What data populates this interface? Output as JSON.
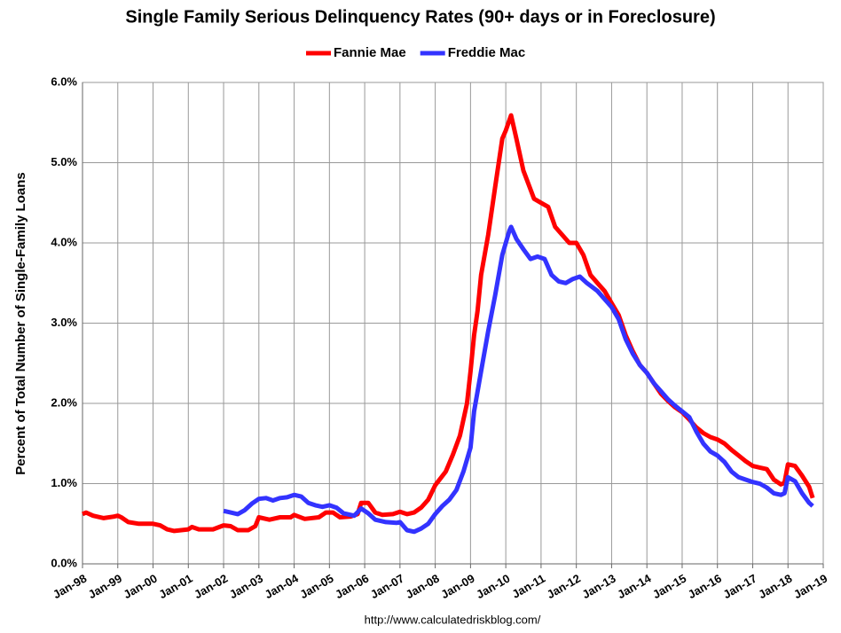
{
  "chart_data": {
    "type": "line",
    "title": "Single Family Serious Delinquency Rates (90+ days or in Foreclosure)",
    "y_label": "Percent of Total Number of Single-Family Loans",
    "source": "http://www.calculatedriskblog.com/",
    "grid": true,
    "legend": "top",
    "xlim": [
      1998,
      2019
    ],
    "ylim": [
      0,
      6
    ],
    "xticks": [
      {
        "value": 1998,
        "label": "Jan-98"
      },
      {
        "value": 1999,
        "label": "Jan-99"
      },
      {
        "value": 2000,
        "label": "Jan-00"
      },
      {
        "value": 2001,
        "label": "Jan-01"
      },
      {
        "value": 2002,
        "label": "Jan-02"
      },
      {
        "value": 2003,
        "label": "Jan-03"
      },
      {
        "value": 2004,
        "label": "Jan-04"
      },
      {
        "value": 2005,
        "label": "Jan-05"
      },
      {
        "value": 2006,
        "label": "Jan-06"
      },
      {
        "value": 2007,
        "label": "Jan-07"
      },
      {
        "value": 2008,
        "label": "Jan-08"
      },
      {
        "value": 2009,
        "label": "Jan-09"
      },
      {
        "value": 2010,
        "label": "Jan-10"
      },
      {
        "value": 2011,
        "label": "Jan-11"
      },
      {
        "value": 2012,
        "label": "Jan-12"
      },
      {
        "value": 2013,
        "label": "Jan-13"
      },
      {
        "value": 2014,
        "label": "Jan-14"
      },
      {
        "value": 2015,
        "label": "Jan-15"
      },
      {
        "value": 2016,
        "label": "Jan-16"
      },
      {
        "value": 2017,
        "label": "Jan-17"
      },
      {
        "value": 2018,
        "label": "Jan-18"
      },
      {
        "value": 2019,
        "label": "Jan-19"
      }
    ],
    "yticks": [
      {
        "value": 0,
        "label": "0.0%"
      },
      {
        "value": 1,
        "label": "1.0%"
      },
      {
        "value": 2,
        "label": "2.0%"
      },
      {
        "value": 3,
        "label": "3.0%"
      },
      {
        "value": 4,
        "label": "4.0%"
      },
      {
        "value": 5,
        "label": "5.0%"
      },
      {
        "value": 6,
        "label": "6.0%"
      }
    ],
    "series": [
      {
        "name": "Fannie Mae",
        "color": "#ff0000",
        "x": [
          1998.0,
          1998.1,
          1998.3,
          1998.6,
          1998.9,
          1999.0,
          1999.1,
          1999.3,
          1999.6,
          2000.0,
          2000.2,
          2000.4,
          2000.6,
          2001.0,
          2001.1,
          2001.3,
          2001.7,
          2002.0,
          2002.2,
          2002.4,
          2002.7,
          2002.9,
          2003.0,
          2003.3,
          2003.6,
          2003.9,
          2004.0,
          2004.3,
          2004.7,
          2004.9,
          2005.1,
          2005.3,
          2005.6,
          2005.8,
          2005.9,
          2006.1,
          2006.3,
          2006.5,
          2006.8,
          2007.0,
          2007.2,
          2007.4,
          2007.6,
          2007.8,
          2008.0,
          2008.3,
          2008.5,
          2008.7,
          2008.9,
          2009.0,
          2009.1,
          2009.2,
          2009.3,
          2009.5,
          2009.7,
          2009.9,
          2010.0,
          2010.15,
          2010.3,
          2010.5,
          2010.8,
          2011.0,
          2011.2,
          2011.4,
          2011.6,
          2011.8,
          2012.0,
          2012.2,
          2012.4,
          2012.6,
          2012.8,
          2013.0,
          2013.2,
          2013.4,
          2013.6,
          2013.8,
          2014.0,
          2014.2,
          2014.4,
          2014.6,
          2014.8,
          2015.0,
          2015.2,
          2015.4,
          2015.6,
          2015.8,
          2016.0,
          2016.2,
          2016.4,
          2016.6,
          2016.8,
          2017.0,
          2017.2,
          2017.4,
          2017.6,
          2017.8,
          2017.9,
          2018.0,
          2018.2,
          2018.4,
          2018.6,
          2018.7
        ],
        "values": [
          0.62,
          0.64,
          0.6,
          0.57,
          0.59,
          0.6,
          0.58,
          0.52,
          0.5,
          0.5,
          0.48,
          0.43,
          0.41,
          0.43,
          0.46,
          0.43,
          0.43,
          0.48,
          0.47,
          0.42,
          0.42,
          0.47,
          0.58,
          0.55,
          0.58,
          0.58,
          0.61,
          0.56,
          0.58,
          0.64,
          0.64,
          0.58,
          0.59,
          0.62,
          0.76,
          0.76,
          0.64,
          0.61,
          0.62,
          0.65,
          0.62,
          0.64,
          0.7,
          0.8,
          0.98,
          1.15,
          1.36,
          1.6,
          2.0,
          2.4,
          2.85,
          3.15,
          3.6,
          4.1,
          4.7,
          5.3,
          5.4,
          5.59,
          5.3,
          4.9,
          4.55,
          4.5,
          4.45,
          4.2,
          4.1,
          4.0,
          4.0,
          3.85,
          3.6,
          3.5,
          3.4,
          3.25,
          3.1,
          2.85,
          2.65,
          2.48,
          2.38,
          2.25,
          2.12,
          2.03,
          1.95,
          1.89,
          1.8,
          1.7,
          1.63,
          1.58,
          1.55,
          1.5,
          1.42,
          1.35,
          1.28,
          1.22,
          1.2,
          1.18,
          1.05,
          0.99,
          1.01,
          1.24,
          1.22,
          1.1,
          0.96,
          0.82
        ]
      },
      {
        "name": "Freddie Mac",
        "color": "#3333ff",
        "x": [
          2002.0,
          2002.2,
          2002.4,
          2002.6,
          2002.8,
          2003.0,
          2003.2,
          2003.4,
          2003.6,
          2003.8,
          2004.0,
          2004.2,
          2004.4,
          2004.6,
          2004.8,
          2005.0,
          2005.2,
          2005.4,
          2005.7,
          2005.9,
          2006.1,
          2006.3,
          2006.6,
          2006.9,
          2007.0,
          2007.2,
          2007.4,
          2007.6,
          2007.8,
          2008.0,
          2008.2,
          2008.4,
          2008.6,
          2008.8,
          2009.0,
          2009.1,
          2009.3,
          2009.5,
          2009.7,
          2009.9,
          2010.1,
          2010.15,
          2010.3,
          2010.5,
          2010.7,
          2010.9,
          2011.1,
          2011.3,
          2011.5,
          2011.7,
          2011.9,
          2012.1,
          2012.3,
          2012.6,
          2012.8,
          2013.0,
          2013.2,
          2013.4,
          2013.6,
          2013.8,
          2014.0,
          2014.2,
          2014.4,
          2014.6,
          2014.8,
          2015.0,
          2015.2,
          2015.4,
          2015.6,
          2015.8,
          2016.0,
          2016.2,
          2016.4,
          2016.6,
          2016.8,
          2017.0,
          2017.2,
          2017.4,
          2017.6,
          2017.8,
          2017.9,
          2018.0,
          2018.2,
          2018.4,
          2018.6,
          2018.7
        ],
        "values": [
          0.66,
          0.64,
          0.62,
          0.67,
          0.75,
          0.81,
          0.82,
          0.79,
          0.82,
          0.83,
          0.86,
          0.84,
          0.76,
          0.73,
          0.71,
          0.73,
          0.7,
          0.63,
          0.6,
          0.69,
          0.63,
          0.55,
          0.52,
          0.51,
          0.52,
          0.42,
          0.4,
          0.44,
          0.5,
          0.62,
          0.72,
          0.8,
          0.92,
          1.15,
          1.45,
          1.9,
          2.4,
          2.9,
          3.35,
          3.85,
          4.15,
          4.2,
          4.05,
          3.92,
          3.8,
          3.83,
          3.8,
          3.6,
          3.52,
          3.5,
          3.55,
          3.58,
          3.5,
          3.4,
          3.3,
          3.2,
          3.05,
          2.8,
          2.62,
          2.48,
          2.38,
          2.25,
          2.15,
          2.05,
          1.97,
          1.9,
          1.83,
          1.65,
          1.5,
          1.4,
          1.35,
          1.27,
          1.15,
          1.08,
          1.05,
          1.02,
          1.0,
          0.95,
          0.88,
          0.86,
          0.88,
          1.08,
          1.03,
          0.88,
          0.76,
          0.72
        ]
      }
    ]
  }
}
